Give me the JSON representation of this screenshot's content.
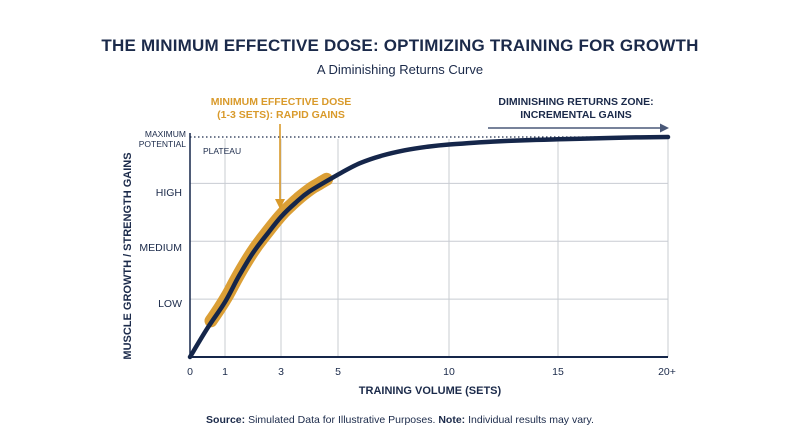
{
  "chart_data": {
    "type": "line",
    "title": "THE MINIMUM EFFECTIVE DOSE: OPTIMIZING TRAINING FOR GROWTH",
    "subtitle": "A Diminishing Returns Curve",
    "xlabel": "TRAINING VOLUME (SETS)",
    "ylabel": "MUSCLE GROWTH / STRENGTH GAINS",
    "x_ticks": [
      "0",
      "1",
      "3",
      "5",
      "10",
      "15",
      "20+"
    ],
    "x_tick_values": [
      0,
      1,
      3,
      5,
      10,
      15,
      20
    ],
    "xlim": [
      0,
      20
    ],
    "y_ticks": [
      "LOW",
      "MEDIUM",
      "HIGH"
    ],
    "y_tick_values": [
      1,
      2,
      3
    ],
    "ylim": [
      0,
      3.8
    ],
    "max_line_label": "MAXIMUM POTENTIAL",
    "max_line_value": 3.8,
    "plateau_label": "PLATEAU",
    "grid": true,
    "series": [
      {
        "x": [
          0,
          0.5,
          1,
          1.5,
          2,
          2.5,
          3,
          3.5,
          4,
          5,
          6,
          7,
          8,
          9,
          10,
          12,
          14,
          15,
          16,
          18,
          20
        ],
        "values": [
          0,
          0.5,
          0.95,
          1.4,
          1.8,
          2.12,
          2.42,
          2.66,
          2.86,
          3.15,
          3.35,
          3.48,
          3.57,
          3.63,
          3.67,
          3.72,
          3.75,
          3.76,
          3.77,
          3.79,
          3.8
        ]
      }
    ],
    "highlight": {
      "x_range": [
        0.6,
        4.6
      ]
    },
    "annotations": [
      "MINIMUM EFFECTIVE DOSE (1-3 SETS): RAPID GAINS",
      "DIMINISHING RETURNS ZONE: INCREMENTAL GAINS"
    ],
    "colors": {
      "curve": "#15264a",
      "highlight": "#d99a2b",
      "grid": "#c8ccd2",
      "axis": "#15264a"
    }
  },
  "text": {
    "annotation_orange_line1": "MINIMUM EFFECTIVE DOSE",
    "annotation_orange_line2": "(1-3 SETS): RAPID GAINS",
    "annotation_navy_line1": "DIMINISHING RETURNS ZONE:",
    "annotation_navy_line2": "INCREMENTAL GAINS",
    "max_line1": "MAXIMUM",
    "max_line2": "POTENTIAL",
    "source_label": "Source:",
    "source_text": "Simulated Data for Illustrative Purposes.",
    "note_label": "Note:",
    "note_text": "Individual results may vary."
  }
}
